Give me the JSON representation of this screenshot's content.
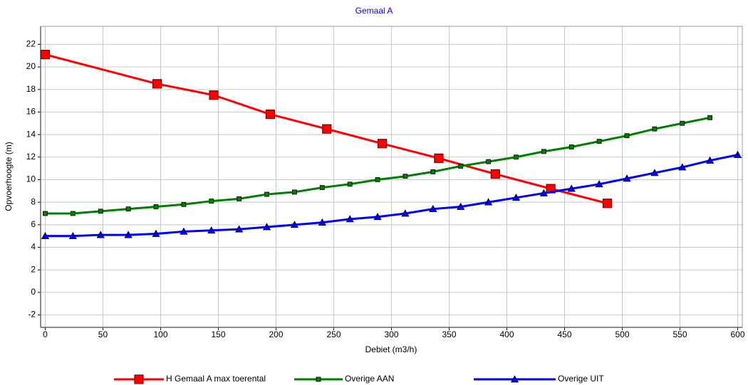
{
  "chart_data": {
    "type": "line",
    "title": "Gemaal A",
    "x_label": "Debiet (m3/h)",
    "y_label": "Opvoerhoogte (m)",
    "xlim": [
      -4,
      604
    ],
    "ylim": [
      -3.1,
      23.6
    ],
    "xticks": [
      0,
      50,
      100,
      150,
      200,
      250,
      300,
      350,
      400,
      450,
      500,
      550,
      600
    ],
    "yticks": [
      -2,
      0,
      2,
      4,
      6,
      8,
      10,
      12,
      14,
      16,
      18,
      20,
      22
    ],
    "grid": true,
    "legend": "bottom",
    "series": [
      {
        "name": "H Gemaal A max toerental",
        "color": "#ff0000",
        "marker": "square",
        "x": [
          0,
          97,
          146,
          195,
          244,
          292,
          341,
          390,
          438,
          487
        ],
        "values": [
          21.1,
          18.5,
          17.5,
          15.8,
          14.5,
          13.2,
          11.9,
          10.5,
          9.2,
          7.9
        ]
      },
      {
        "name": "Overige AAN",
        "color": "#008000",
        "marker": "square",
        "x": [
          0,
          24,
          48,
          72,
          96,
          120,
          144,
          168,
          192,
          216,
          240,
          264,
          288,
          312,
          336,
          360,
          384,
          408,
          432,
          456,
          480,
          504,
          528,
          552,
          576
        ],
        "values": [
          7.0,
          7.0,
          7.2,
          7.4,
          7.6,
          7.8,
          8.1,
          8.3,
          8.7,
          8.9,
          9.3,
          9.6,
          10.0,
          10.3,
          10.7,
          11.2,
          11.6,
          12.0,
          12.5,
          12.9,
          13.4,
          13.9,
          14.5,
          15.0,
          15.5
        ]
      },
      {
        "name": "Overige UIT",
        "color": "#0000ff",
        "marker": "triangle",
        "x": [
          0,
          24,
          48,
          72,
          96,
          120,
          144,
          168,
          192,
          216,
          240,
          264,
          288,
          312,
          336,
          360,
          384,
          408,
          432,
          456,
          480,
          504,
          528,
          552,
          576,
          600
        ],
        "values": [
          5.0,
          5.0,
          5.1,
          5.1,
          5.2,
          5.4,
          5.5,
          5.6,
          5.8,
          6.0,
          6.2,
          6.5,
          6.7,
          7.0,
          7.4,
          7.6,
          8.0,
          8.4,
          8.8,
          9.2,
          9.6,
          10.1,
          10.6,
          11.1,
          11.7,
          12.2
        ]
      }
    ]
  }
}
